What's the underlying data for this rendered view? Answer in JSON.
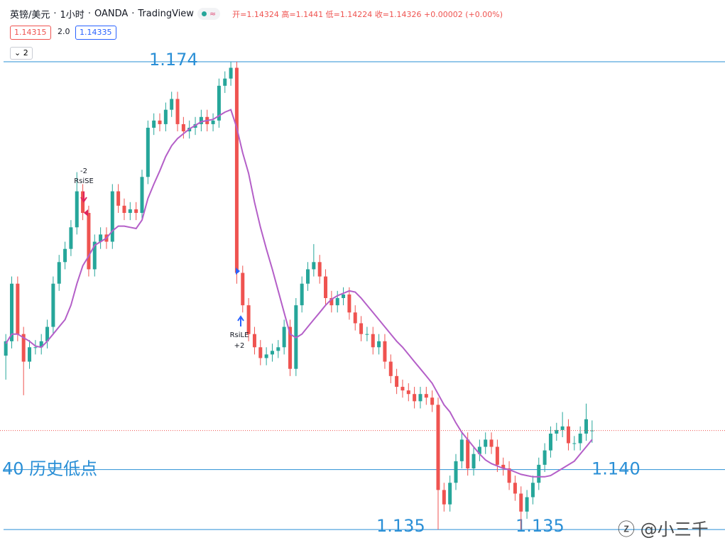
{
  "header": {
    "symbol": "英镑/美元",
    "interval": "1小时",
    "broker": "OANDA",
    "platform": "TradingView",
    "ohlc_labels": [
      "开=",
      "高=",
      "低=",
      "收="
    ],
    "change": "+0.00002",
    "change_pct": "(+0.00%)"
  },
  "quotes": {
    "sell": 1.14315,
    "spread": "2.0",
    "buy": 1.14335
  },
  "indicator_count": "2",
  "watermark": "@小三千",
  "chart_data": {
    "type": "candlestick",
    "up_color": "#26a69a",
    "down_color": "#ef5350",
    "ma_color": "#b45fc8",
    "level_color": "#2a8fd6",
    "ylim": [
      1.13288,
      1.17915
    ],
    "open": [
      1.1495,
      1.1507,
      1.1555,
      1.1513,
      1.149,
      1.1502,
      1.1502,
      1.1507,
      1.1519,
      1.1555,
      1.1573,
      1.1584,
      1.1602,
      1.1632,
      1.1614,
      1.1567,
      1.159,
      1.1596,
      1.159,
      1.1632,
      1.162,
      1.1614,
      1.1617,
      1.1614,
      1.1644,
      1.1685,
      1.1691,
      1.1688,
      1.17,
      1.1709,
      1.1688,
      1.1682,
      1.1685,
      1.1688,
      1.1694,
      1.1688,
      1.1691,
      1.172,
      1.1726,
      1.1735,
      1.1564,
      1.1537,
      1.1513,
      1.1502,
      1.1493,
      1.1496,
      1.1499,
      1.1502,
      1.1519,
      1.1484,
      1.1537,
      1.1555,
      1.1567,
      1.1573,
      1.1561,
      1.1543,
      1.1537,
      1.1543,
      1.1546,
      1.1531,
      1.1522,
      1.1513,
      1.1513,
      1.1502,
      1.1507,
      1.149,
      1.1478,
      1.1469,
      1.1466,
      1.1463,
      1.1457,
      1.1463,
      1.146,
      1.1454,
      1.1383,
      1.1371,
      1.1389,
      1.1407,
      1.1425,
      1.1401,
      1.1413,
      1.1419,
      1.1425,
      1.1419,
      1.1404,
      1.1401,
      1.1389,
      1.138,
      1.1365,
      1.1377,
      1.1389,
      1.1404,
      1.1416,
      1.143,
      1.1433,
      1.1436,
      1.1422,
      1.1422,
      1.143,
      1.14324
    ],
    "high": [
      1.1513,
      1.1561,
      1.1561,
      1.1519,
      1.1508,
      1.1508,
      1.1513,
      1.1525,
      1.1561,
      1.1579,
      1.159,
      1.1608,
      1.1648,
      1.1638,
      1.162,
      1.1596,
      1.1602,
      1.1602,
      1.1638,
      1.1638,
      1.1626,
      1.1623,
      1.1623,
      1.165,
      1.1691,
      1.1697,
      1.1697,
      1.1706,
      1.1715,
      1.1715,
      1.1694,
      1.1691,
      1.1694,
      1.17,
      1.17,
      1.1697,
      1.1726,
      1.1732,
      1.174,
      1.174,
      1.157,
      1.1543,
      1.1519,
      1.1508,
      1.1502,
      1.1505,
      1.1508,
      1.1525,
      1.1525,
      1.1543,
      1.1561,
      1.1573,
      1.1588,
      1.1579,
      1.1567,
      1.1549,
      1.1549,
      1.1552,
      1.1552,
      1.1537,
      1.1528,
      1.1519,
      1.1519,
      1.1513,
      1.1513,
      1.1496,
      1.1484,
      1.1475,
      1.1472,
      1.1469,
      1.1469,
      1.1469,
      1.1466,
      1.146,
      1.1389,
      1.1395,
      1.1413,
      1.1431,
      1.1431,
      1.1419,
      1.1425,
      1.1431,
      1.1431,
      1.1425,
      1.141,
      1.1407,
      1.1395,
      1.1386,
      1.1383,
      1.1395,
      1.141,
      1.1422,
      1.1436,
      1.1439,
      1.1448,
      1.1442,
      1.1428,
      1.1436,
      1.1455,
      1.1441
    ],
    "low": [
      1.1475,
      1.1501,
      1.1507,
      1.1462,
      1.1484,
      1.1496,
      1.1496,
      1.1501,
      1.1513,
      1.1549,
      1.1567,
      1.1578,
      1.1596,
      1.1608,
      1.1561,
      1.1561,
      1.1584,
      1.1584,
      1.1584,
      1.1614,
      1.1608,
      1.1608,
      1.1608,
      1.1608,
      1.1638,
      1.1679,
      1.1682,
      1.1682,
      1.1694,
      1.1682,
      1.1676,
      1.1676,
      1.1679,
      1.1682,
      1.1682,
      1.1682,
      1.1685,
      1.1714,
      1.172,
      1.1555,
      1.1531,
      1.1507,
      1.1496,
      1.1487,
      1.1487,
      1.149,
      1.1493,
      1.1496,
      1.1478,
      1.1478,
      1.1531,
      1.1549,
      1.1561,
      1.1555,
      1.1537,
      1.1531,
      1.1531,
      1.1537,
      1.1525,
      1.1516,
      1.1507,
      1.1507,
      1.1496,
      1.1496,
      1.1484,
      1.1472,
      1.1463,
      1.146,
      1.1457,
      1.1451,
      1.1451,
      1.1454,
      1.1448,
      1.135,
      1.1365,
      1.1365,
      1.1383,
      1.1401,
      1.1395,
      1.1395,
      1.1407,
      1.1413,
      1.1413,
      1.1398,
      1.1395,
      1.1383,
      1.1374,
      1.135,
      1.1359,
      1.1371,
      1.1383,
      1.1398,
      1.141,
      1.1424,
      1.1427,
      1.1416,
      1.1416,
      1.1416,
      1.1424,
      1.14224
    ],
    "close": [
      1.1507,
      1.1555,
      1.1513,
      1.149,
      1.1502,
      1.1502,
      1.1507,
      1.1519,
      1.1555,
      1.1573,
      1.1584,
      1.1602,
      1.1632,
      1.1614,
      1.1567,
      1.159,
      1.1596,
      1.159,
      1.1632,
      1.162,
      1.1614,
      1.1617,
      1.1614,
      1.1644,
      1.1685,
      1.1691,
      1.1688,
      1.17,
      1.1709,
      1.1688,
      1.1682,
      1.1685,
      1.1688,
      1.1694,
      1.1688,
      1.1691,
      1.172,
      1.1726,
      1.1735,
      1.1564,
      1.1537,
      1.1513,
      1.1502,
      1.1493,
      1.1496,
      1.1499,
      1.1502,
      1.1519,
      1.1484,
      1.1537,
      1.1555,
      1.1567,
      1.1573,
      1.1561,
      1.1543,
      1.1537,
      1.1543,
      1.1546,
      1.1531,
      1.1522,
      1.1513,
      1.1513,
      1.1502,
      1.1507,
      1.149,
      1.1478,
      1.1469,
      1.1466,
      1.1463,
      1.1457,
      1.1463,
      1.146,
      1.1454,
      1.1383,
      1.1371,
      1.1389,
      1.1407,
      1.1425,
      1.1401,
      1.1413,
      1.1419,
      1.1425,
      1.1419,
      1.1404,
      1.1401,
      1.1389,
      1.138,
      1.1365,
      1.1377,
      1.1389,
      1.1404,
      1.1416,
      1.143,
      1.1433,
      1.1436,
      1.1422,
      1.1422,
      1.143,
      1.1442,
      1.14326
    ],
    "ma": [
      1.1505,
      1.1513,
      1.1513,
      1.151,
      1.1507,
      1.1503,
      1.1502,
      1.1507,
      1.1513,
      1.1519,
      1.1525,
      1.1537,
      1.1555,
      1.157,
      1.1578,
      1.1587,
      1.159,
      1.1593,
      1.1599,
      1.1603,
      1.1603,
      1.1602,
      1.1601,
      1.1608,
      1.1626,
      1.1638,
      1.1649,
      1.1661,
      1.167,
      1.1676,
      1.168,
      1.1684,
      1.1687,
      1.169,
      1.1691,
      1.1692,
      1.1695,
      1.1698,
      1.17,
      1.1685,
      1.1664,
      1.1647,
      1.1623,
      1.1602,
      1.1584,
      1.1567,
      1.1549,
      1.1531,
      1.1513,
      1.151,
      1.1513,
      1.1519,
      1.1525,
      1.1531,
      1.1537,
      1.1542,
      1.1545,
      1.1547,
      1.1549,
      1.1548,
      1.1543,
      1.1537,
      1.1531,
      1.1525,
      1.1519,
      1.1513,
      1.1507,
      1.1502,
      1.1496,
      1.149,
      1.1484,
      1.1478,
      1.1472,
      1.1463,
      1.1454,
      1.1448,
      1.1439,
      1.1431,
      1.1425,
      1.1419,
      1.1413,
      1.1408,
      1.1405,
      1.1403,
      1.1401,
      1.14,
      1.1398,
      1.1396,
      1.1395,
      1.1394,
      1.1394,
      1.1394,
      1.1395,
      1.1398,
      1.1401,
      1.1404,
      1.1407,
      1.1413,
      1.1419,
      1.1425
    ],
    "levels": [
      {
        "value": 1.174,
        "label": "1.174"
      },
      {
        "value": 1.14,
        "label": "1.140"
      },
      {
        "value": 1.135,
        "label": "1.135"
      }
    ],
    "note": "40 历史低点",
    "signals": [
      {
        "qty": "-2",
        "label": "RsiSE"
      },
      {
        "label": "RsiLE",
        "qty": "+2"
      }
    ]
  }
}
